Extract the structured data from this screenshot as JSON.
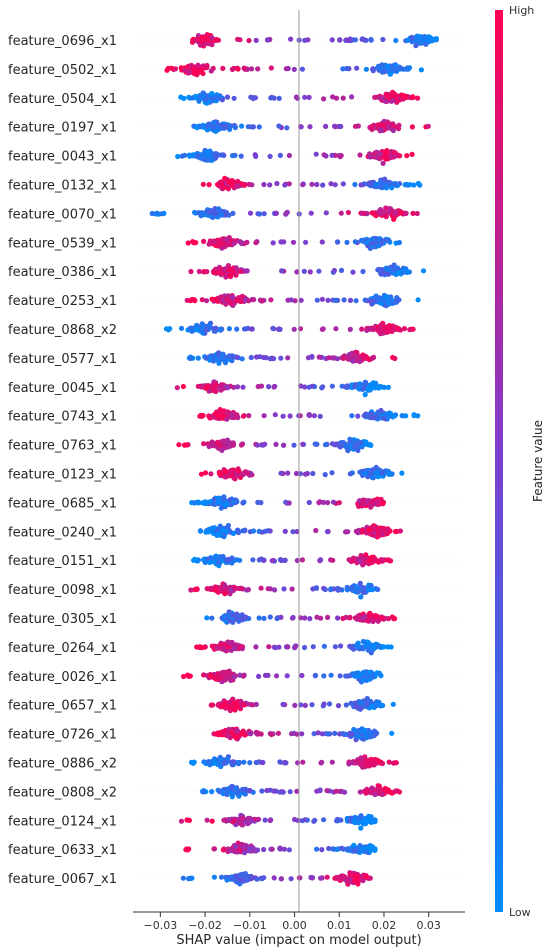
{
  "chart_data": {
    "type": "scatter",
    "subtype": "shap-beeswarm-summary",
    "xlabel": "SHAP value (impact on model output)",
    "xlim": [
      -0.035,
      0.037
    ],
    "xticks": [
      "−0.03",
      "−0.02",
      "−0.01",
      "0.00",
      "0.01",
      "0.02",
      "0.03"
    ],
    "xtick_values": [
      -0.03,
      -0.02,
      -0.01,
      0.0,
      0.01,
      0.02,
      0.03
    ],
    "grid": false,
    "zero_line": true,
    "colorbar": {
      "title": "Feature value",
      "high_label": "High",
      "low_label": "Low",
      "high_color": "#ff0052",
      "mid_color": "#7b3fd0",
      "low_color": "#008bfb"
    },
    "features": [
      {
        "name": "feature_0696_x1",
        "min": -0.028,
        "max": 0.034,
        "dense": [
          -0.02,
          0.014,
          0.028
        ],
        "direction": "neg"
      },
      {
        "name": "feature_0502_x1",
        "min": -0.03,
        "max": 0.029,
        "dense": [
          -0.022,
          -0.012,
          0.021
        ],
        "direction": "pos_low"
      },
      {
        "name": "feature_0504_x1",
        "min": -0.026,
        "max": 0.03,
        "dense": [
          -0.019,
          0.022
        ],
        "direction": "pos"
      },
      {
        "name": "feature_0197_x1",
        "min": -0.024,
        "max": 0.032,
        "dense": [
          -0.017,
          0.02
        ],
        "direction": "pos"
      },
      {
        "name": "feature_0043_x1",
        "min": -0.027,
        "max": 0.027,
        "dense": [
          -0.02,
          0.02
        ],
        "direction": "pos"
      },
      {
        "name": "feature_0132_x1",
        "min": -0.022,
        "max": 0.029,
        "dense": [
          -0.015,
          0.02
        ],
        "direction": "neg"
      },
      {
        "name": "feature_0070_x1",
        "min": -0.032,
        "max": 0.028,
        "dense": [
          -0.018,
          0.021
        ],
        "direction": "pos"
      },
      {
        "name": "feature_0539_x1",
        "min": -0.024,
        "max": 0.027,
        "dense": [
          -0.016,
          0.018
        ],
        "direction": "neg"
      },
      {
        "name": "feature_0386_x1",
        "min": -0.024,
        "max": 0.03,
        "dense": [
          -0.015,
          0.022
        ],
        "direction": "neg"
      },
      {
        "name": "feature_0253_x1",
        "min": -0.024,
        "max": 0.028,
        "dense": [
          -0.014,
          0.02
        ],
        "direction": "neg"
      },
      {
        "name": "feature_0868_x2",
        "min": -0.031,
        "max": 0.028,
        "dense": [
          -0.02,
          0.02
        ],
        "direction": "pos"
      },
      {
        "name": "feature_0577_x1",
        "min": -0.025,
        "max": 0.024,
        "dense": [
          -0.017,
          0.014
        ],
        "direction": "pos"
      },
      {
        "name": "feature_0045_x1",
        "min": -0.027,
        "max": 0.021,
        "dense": [
          -0.018,
          0.016
        ],
        "direction": "neg"
      },
      {
        "name": "feature_0743_x1",
        "min": -0.022,
        "max": 0.028,
        "dense": [
          -0.016,
          0.019
        ],
        "direction": "neg"
      },
      {
        "name": "feature_0763_x1",
        "min": -0.026,
        "max": 0.021,
        "dense": [
          -0.016,
          0.013
        ],
        "direction": "neg"
      },
      {
        "name": "feature_0123_x1",
        "min": -0.021,
        "max": 0.025,
        "dense": [
          -0.014,
          0.018
        ],
        "direction": "neg"
      },
      {
        "name": "feature_0685_x1",
        "min": -0.023,
        "max": 0.024,
        "dense": [
          -0.016,
          0.017
        ],
        "direction": "pos"
      },
      {
        "name": "feature_0240_x1",
        "min": -0.022,
        "max": 0.024,
        "dense": [
          -0.016,
          0.018
        ],
        "direction": "pos"
      },
      {
        "name": "feature_0151_x1",
        "min": -0.024,
        "max": 0.023,
        "dense": [
          -0.017,
          0.016
        ],
        "direction": "pos"
      },
      {
        "name": "feature_0098_x1",
        "min": -0.024,
        "max": 0.025,
        "dense": [
          -0.016,
          0.015
        ],
        "direction": "neg"
      },
      {
        "name": "feature_0305_x1",
        "min": -0.021,
        "max": 0.023,
        "dense": [
          -0.014,
          0.017
        ],
        "direction": "pos"
      },
      {
        "name": "feature_0264_x1",
        "min": -0.022,
        "max": 0.022,
        "dense": [
          -0.015,
          0.016
        ],
        "direction": "neg"
      },
      {
        "name": "feature_0026_x1",
        "min": -0.025,
        "max": 0.02,
        "dense": [
          -0.016,
          0.016
        ],
        "direction": "neg"
      },
      {
        "name": "feature_0657_x1",
        "min": -0.019,
        "max": 0.023,
        "dense": [
          -0.014,
          0.016
        ],
        "direction": "neg"
      },
      {
        "name": "feature_0726_x1",
        "min": -0.018,
        "max": 0.022,
        "dense": [
          -0.013,
          0.015
        ],
        "direction": "neg"
      },
      {
        "name": "feature_0886_x2",
        "min": -0.025,
        "max": 0.024,
        "dense": [
          -0.016,
          0.016
        ],
        "direction": "pos"
      },
      {
        "name": "feature_0808_x2",
        "min": -0.022,
        "max": 0.025,
        "dense": [
          -0.014,
          0.019
        ],
        "direction": "pos"
      },
      {
        "name": "feature_0124_x1",
        "min": -0.026,
        "max": 0.018,
        "dense": [
          -0.012,
          0.015
        ],
        "direction": "neg"
      },
      {
        "name": "feature_0633_x1",
        "min": -0.025,
        "max": 0.018,
        "dense": [
          -0.012,
          0.015
        ],
        "direction": "neg"
      },
      {
        "name": "feature_0067_x1",
        "min": -0.025,
        "max": 0.019,
        "dense": [
          -0.012,
          0.013
        ],
        "direction": "pos"
      }
    ]
  }
}
